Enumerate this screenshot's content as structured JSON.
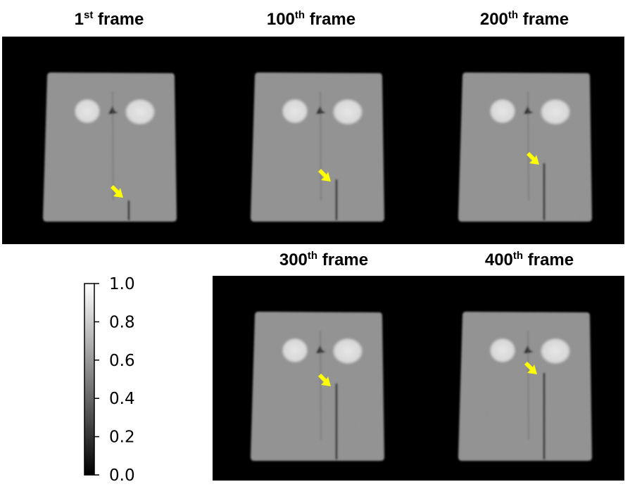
{
  "frames": [
    {
      "num": "1",
      "suffix": "st",
      "word": "frame"
    },
    {
      "num": "100",
      "suffix": "th",
      "word": "frame"
    },
    {
      "num": "200",
      "suffix": "th",
      "word": "frame"
    },
    {
      "num": "300",
      "suffix": "th",
      "word": "frame"
    },
    {
      "num": "400",
      "suffix": "th",
      "word": "frame"
    }
  ],
  "colorbar": {
    "colormap": "gray",
    "range": [
      0.0,
      1.0
    ],
    "ticks": [
      "0.0",
      "0.2",
      "0.4",
      "0.6",
      "0.8",
      "1.0"
    ]
  },
  "colors": {
    "arrow": "#ffff00",
    "background": "#000000"
  }
}
